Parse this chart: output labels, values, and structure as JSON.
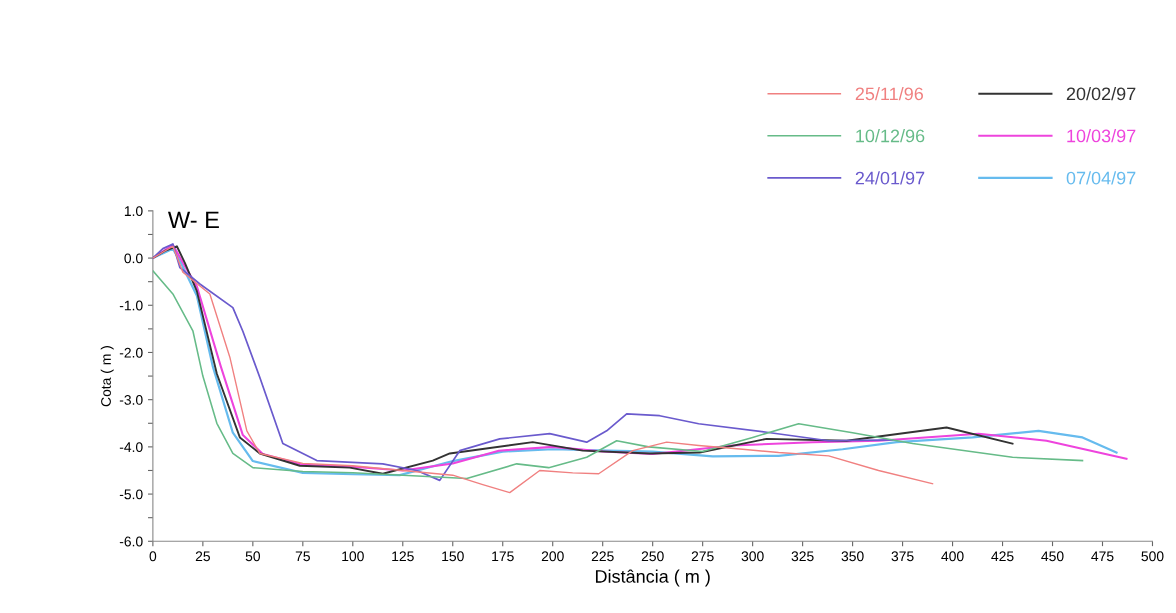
{
  "chart_data": {
    "type": "line",
    "title": "W- E",
    "xlabel": "Distância ( m )",
    "ylabel": "Cota ( m )",
    "xlim": [
      0,
      500
    ],
    "xticks": [
      0,
      25,
      50,
      75,
      100,
      125,
      150,
      175,
      200,
      225,
      250,
      275,
      300,
      325,
      350,
      375,
      400,
      425,
      450,
      475,
      500
    ],
    "ylim": [
      -6,
      1
    ],
    "yticks": [
      {
        "value": -6,
        "label": "-6.0"
      },
      {
        "value": -5.5,
        "label": null
      },
      {
        "value": -5,
        "label": "-5.0"
      },
      {
        "value": -4.5,
        "label": null
      },
      {
        "value": -4,
        "label": "-4.0"
      },
      {
        "value": -3.5,
        "label": null
      },
      {
        "value": -3,
        "label": "-3.0"
      },
      {
        "value": -2.5,
        "label": null
      },
      {
        "value": -2,
        "label": "-2.0"
      },
      {
        "value": -1.5,
        "label": null
      },
      {
        "value": -1,
        "label": "-1.0"
      },
      {
        "value": -0.5,
        "label": null
      },
      {
        "value": 0,
        "label": "0.0"
      },
      {
        "value": 0.5,
        "label": null
      },
      {
        "value": 1,
        "label": "1.0"
      }
    ],
    "grid": false,
    "legend": "top right",
    "marker": "none",
    "line_style": "solid",
    "series": [
      {
        "name": "25/11/96",
        "color": "#f08080",
        "x": [
          0,
          10,
          15,
          28.5,
          38.5,
          47,
          53.5,
          75,
          100,
          125,
          150,
          165,
          178.5,
          193.5,
          210,
          223,
          240,
          257,
          273,
          295,
          313,
          338,
          363,
          390
        ],
        "values": [
          0,
          0.25,
          -0.3,
          -0.76,
          -2.1,
          -3.66,
          -4.14,
          -4.35,
          -4.4,
          -4.5,
          -4.6,
          -4.8,
          -4.97,
          -4.5,
          -4.55,
          -4.57,
          -4.08,
          -3.9,
          -3.97,
          -4.05,
          -4.12,
          -4.19,
          -4.5,
          -4.78
        ]
      },
      {
        "name": "10/12/96",
        "color": "#66bb88",
        "x": [
          0,
          10,
          20,
          25,
          32,
          40,
          50,
          75,
          100,
          125,
          157,
          182,
          198,
          217,
          232,
          248,
          275,
          300,
          323,
          350,
          380,
          430,
          465
        ],
        "values": [
          -0.27,
          -0.76,
          -1.54,
          -2.5,
          -3.5,
          -4.14,
          -4.44,
          -4.52,
          -4.55,
          -4.6,
          -4.67,
          -4.36,
          -4.44,
          -4.22,
          -3.87,
          -4.0,
          -4.1,
          -3.8,
          -3.51,
          -3.7,
          -3.93,
          -4.22,
          -4.29
        ]
      },
      {
        "name": "24/01/97",
        "color": "#6a5acd",
        "x": [
          0,
          5,
          10,
          13.5,
          23.5,
          40,
          45,
          53.5,
          65,
          82,
          115,
          132,
          143.5,
          153.5,
          173.5,
          198.5,
          217,
          227,
          237,
          253.5,
          273,
          307,
          338,
          370
        ],
        "values": [
          0,
          0.2,
          0.3,
          -0.2,
          -0.55,
          -1.05,
          -1.55,
          -2.53,
          -3.93,
          -4.29,
          -4.36,
          -4.5,
          -4.71,
          -4.08,
          -3.83,
          -3.72,
          -3.9,
          -3.66,
          -3.3,
          -3.34,
          -3.51,
          -3.69,
          -3.87,
          -3.85
        ]
      },
      {
        "name": "20/02/97",
        "color": "#333333",
        "x": [
          0,
          6,
          12,
          16,
          22,
          32,
          43.5,
          53.5,
          73.5,
          98.5,
          115,
          140,
          148.5,
          190,
          215,
          248.5,
          273.5,
          307,
          347,
          397,
          430
        ],
        "values": [
          0,
          0.15,
          0.25,
          -0.1,
          -0.7,
          -2.45,
          -3.8,
          -4.14,
          -4.4,
          -4.44,
          -4.57,
          -4.29,
          -4.14,
          -3.9,
          -4.08,
          -4.14,
          -4.12,
          -3.83,
          -3.87,
          -3.59,
          -3.93
        ]
      },
      {
        "name": "10/03/97",
        "color": "#ee44dd",
        "x": [
          0,
          10,
          15,
          22,
          34,
          45,
          55,
          75,
          100,
          125,
          150,
          173,
          200,
          225,
          250,
          290,
          330,
          363,
          413,
          447,
          487
        ],
        "values": [
          0,
          0.28,
          -0.1,
          -0.6,
          -2.3,
          -3.75,
          -4.15,
          -4.38,
          -4.42,
          -4.5,
          -4.35,
          -4.08,
          -4.0,
          -4.1,
          -4.15,
          -3.97,
          -3.9,
          -3.87,
          -3.72,
          -3.87,
          -4.25
        ]
      },
      {
        "name": "07/04/97",
        "color": "#66bbee",
        "x": [
          0,
          10,
          14,
          22,
          30,
          40,
          50,
          75,
          100,
          123.5,
          150,
          175,
          200,
          250,
          280,
          313,
          345,
          372,
          410,
          443,
          465,
          482
        ],
        "values": [
          0,
          0.2,
          -0.1,
          -0.8,
          -2.3,
          -3.7,
          -4.3,
          -4.55,
          -4.58,
          -4.6,
          -4.3,
          -4.1,
          -4.05,
          -4.1,
          -4.2,
          -4.19,
          -4.05,
          -3.9,
          -3.8,
          -3.66,
          -3.8,
          -4.12
        ]
      }
    ]
  }
}
